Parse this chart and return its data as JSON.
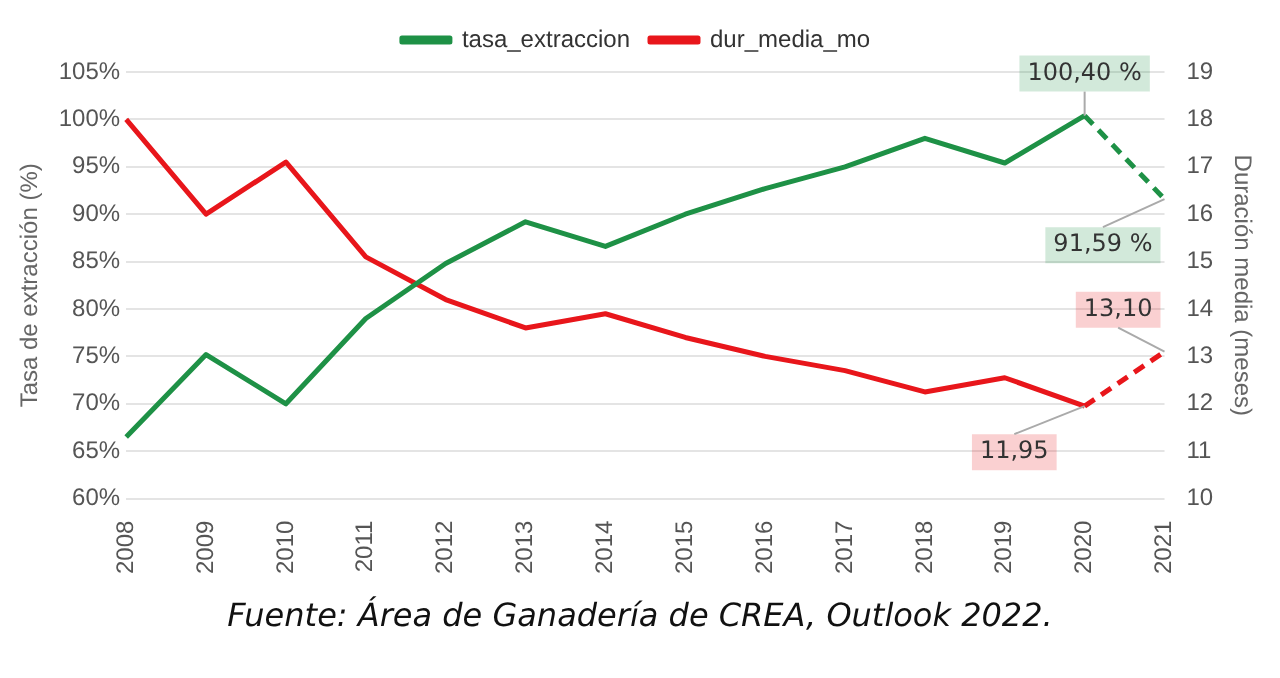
{
  "chart_data": {
    "type": "line",
    "categories": [
      "2008",
      "2009",
      "2010",
      "2011",
      "2012",
      "2013",
      "2014",
      "2015",
      "2016",
      "2017",
      "2018",
      "2019",
      "2020",
      "2021"
    ],
    "series": [
      {
        "name": "tasa_extraccion",
        "color": "#1e9146",
        "values": [
          66.5,
          75.2,
          70,
          79,
          84.8,
          89.2,
          86.6,
          90,
          92.7,
          95,
          98,
          95.4,
          100.4,
          null
        ]
      },
      {
        "name": "dur_media_mo",
        "color": "#e8161b",
        "axis": "y2",
        "values": [
          18,
          16,
          17.1,
          15.1,
          14.2,
          13.6,
          13.9,
          13.4,
          13.0,
          12.7,
          12.25,
          12.55,
          11.95,
          null
        ]
      },
      {
        "color": "#1e9146",
        "line_style": "dashed",
        "values": [
          null,
          null,
          null,
          null,
          null,
          null,
          null,
          null,
          null,
          null,
          null,
          null,
          100.4,
          91.59
        ],
        "value_labels": [
          null,
          null,
          null,
          null,
          null,
          null,
          null,
          null,
          null,
          null,
          null,
          null,
          "100,40 %",
          "91,59 %"
        ]
      },
      {
        "color": "#e8161b",
        "line_style": "dashed",
        "axis": "y2",
        "values": [
          null,
          null,
          null,
          null,
          null,
          null,
          null,
          null,
          null,
          null,
          null,
          null,
          11.95,
          13.1
        ],
        "value_labels": [
          null,
          null,
          null,
          null,
          null,
          null,
          null,
          null,
          null,
          null,
          null,
          null,
          "11,95",
          "13,10"
        ]
      }
    ],
    "ylabel": "Tasa de extracción (%)",
    "y2label": "Duración media (meses)",
    "ylim": [
      60,
      105
    ],
    "yticks": [
      {
        "value": 60,
        "label": "60%"
      },
      {
        "value": 65,
        "label": "65%"
      },
      {
        "value": 70,
        "label": "70%"
      },
      {
        "value": 75,
        "label": "75%"
      },
      {
        "value": 80,
        "label": "80%"
      },
      {
        "value": 85,
        "label": "85%"
      },
      {
        "value": 90,
        "label": "90%"
      },
      {
        "value": 95,
        "label": "95%"
      },
      {
        "value": 100,
        "label": "100%"
      },
      {
        "value": 105,
        "label": "105%"
      }
    ],
    "y2lim": [
      10,
      19
    ],
    "y2ticks": [
      10,
      11,
      12,
      13,
      14,
      15,
      16,
      17,
      18,
      19
    ],
    "grid": "y",
    "legend": "top",
    "marker": "none",
    "annotations": [
      "Fuente: Área de Ganadería de CREA, Outlook 2022."
    ]
  }
}
